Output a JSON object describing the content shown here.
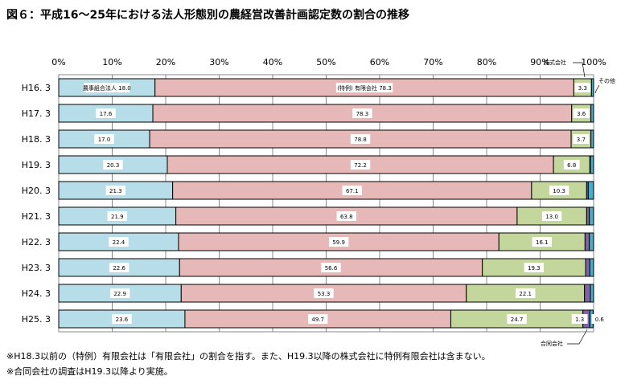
{
  "chart_data": {
    "type": "bar",
    "orientation": "horizontal-stacked-100",
    "title": "図６：平成16～25年における法人形態別の農経営改善計画認定数の割合の推移",
    "categories": [
      "H16. 3",
      "H17. 3",
      "H18. 3",
      "H19. 3",
      "H20. 3",
      "H21. 3",
      "H22. 3",
      "H23. 3",
      "H24. 3",
      "H25. 3"
    ],
    "xlim": [
      0,
      100
    ],
    "xticks": [
      "0%",
      "10%",
      "20%",
      "30%",
      "40%",
      "50%",
      "60%",
      "70%",
      "80%",
      "90%",
      "100%"
    ],
    "grid": true,
    "series": [
      {
        "name": "農事組合法人",
        "color": "#b7dde8",
        "values": [
          18.0,
          17.6,
          17.0,
          20.3,
          21.3,
          21.9,
          22.4,
          22.6,
          22.9,
          23.6
        ],
        "labels": [
          "18.0",
          "17.6",
          "17.0",
          "20.3",
          "21.3",
          "21.9",
          "22.4",
          "22.6",
          "22.9",
          "23.6"
        ]
      },
      {
        "name": "(特例)有限会社",
        "color": "#e6b9b8",
        "values": [
          78.3,
          78.3,
          78.8,
          72.2,
          67.1,
          63.8,
          59.9,
          56.6,
          53.3,
          49.7
        ],
        "labels": [
          "78.3",
          "78.3",
          "78.8",
          "72.2",
          "67.1",
          "63.8",
          "59.9",
          "56.6",
          "53.3",
          "49.7"
        ]
      },
      {
        "name": "株式会社",
        "color": "#c3d69b",
        "values": [
          3.3,
          3.6,
          3.7,
          6.8,
          10.3,
          13.0,
          16.1,
          19.3,
          22.1,
          24.7
        ],
        "labels": [
          "3.3",
          "3.6",
          "3.7",
          "6.8",
          "10.3",
          "13.0",
          "16.1",
          "19.3",
          "22.1",
          "24.7"
        ]
      },
      {
        "name": "合同会社",
        "color": "#8064a2",
        "values": [
          0,
          0,
          0,
          0.1,
          0.3,
          0.5,
          0.8,
          0.8,
          1.1,
          1.3
        ],
        "labels": [
          "",
          "",
          "",
          "",
          "",
          "",
          "",
          "",
          "",
          "1.3"
        ]
      },
      {
        "name": "その他",
        "color": "#4bacc6",
        "values": [
          0.4,
          0.5,
          0.5,
          0.6,
          1.0,
          0.8,
          0.8,
          0.7,
          0.6,
          0.6
        ],
        "labels": [
          "",
          "",
          "",
          "",
          "",
          "",
          "",
          "",
          "",
          "0.6"
        ]
      }
    ],
    "first_row_label_prefixes": [
      "農事組合法人 ",
      "(特例) 有限会社 "
    ]
  },
  "notes": [
    "※H18.3以前の（特例）有限会社は「有限会社」の割合を指す。また、H19.3以降の株式会社に特例有限会社は含まない。",
    "※合同会社の調査はH19.3以降より実施。"
  ]
}
